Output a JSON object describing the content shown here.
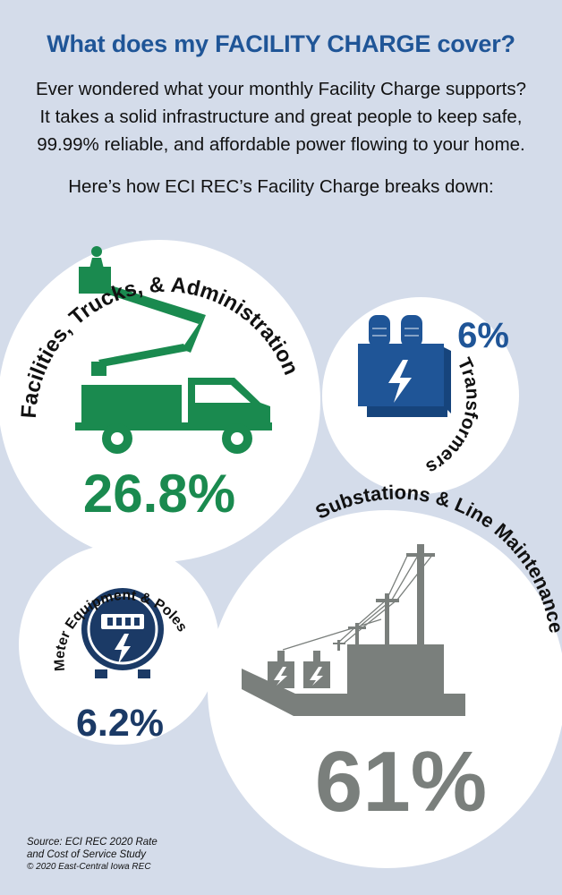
{
  "title": "What does my FACILITY CHARGE cover?",
  "intro": [
    "Ever wondered what your monthly Facility Charge supports?",
    "It takes a solid infrastructure and great people to keep safe,",
    "99.99% reliable, and affordable power flowing to your home."
  ],
  "breakdown_heading": "Here’s how ECI REC’s Facility Charge breaks down:",
  "segments": [
    {
      "label": "Facilities, Trucks, & Administration",
      "percent_text": "26.8%",
      "value": 26.8,
      "color": "#1a8a4f",
      "icon": "bucket-truck-icon"
    },
    {
      "label": "Transformers",
      "percent_text": "6%",
      "value": 6,
      "color": "#1f5597",
      "icon": "transformer-icon"
    },
    {
      "label": "Meter Equipment & Poles",
      "percent_text": "6.2%",
      "value": 6.2,
      "color": "#1b3a66",
      "icon": "electric-meter-icon"
    },
    {
      "label": "Substations & Line Maintenance",
      "percent_text": "61%",
      "value": 61,
      "color": "#7a7f7c",
      "icon": "substation-icon"
    }
  ],
  "source_lines": [
    "Source: ECI REC 2020 Rate",
    "and Cost of Service Study"
  ],
  "copyright": "© 2020 East-Central Iowa REC"
}
